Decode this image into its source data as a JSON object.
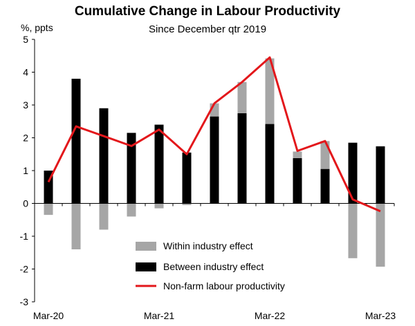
{
  "chart_data": {
    "type": "bar",
    "title": "Cumulative Change in Labour Productivity",
    "subtitle": "Since December qtr 2019",
    "ylabel": "%, ppts",
    "ylim": [
      -3,
      5
    ],
    "yticks": [
      "-3",
      "-2",
      "-1",
      "0",
      "1",
      "2",
      "3",
      "4",
      "5"
    ],
    "x_tick_labels": [
      "Mar-20",
      "Mar-21",
      "Mar-22",
      "Mar-23"
    ],
    "x_tick_positions": [
      0,
      4,
      8,
      12
    ],
    "categories": [
      "Mar-20",
      "Jun-20",
      "Sep-20",
      "Dec-20",
      "Mar-21",
      "Jun-21",
      "Sep-21",
      "Dec-21",
      "Mar-22",
      "Jun-22",
      "Sep-22",
      "Dec-22",
      "Mar-23"
    ],
    "series": [
      {
        "name": "Within industry effect",
        "kind": "stacked-bar",
        "color": "#a6a6a6",
        "values": [
          -0.35,
          -1.4,
          -0.8,
          -0.4,
          -0.15,
          -0.05,
          0.4,
          0.95,
          2.0,
          0.2,
          0.85,
          -1.67,
          -1.93
        ]
      },
      {
        "name": "Between industry effect",
        "kind": "stacked-bar",
        "color": "#000000",
        "values": [
          1.0,
          3.8,
          2.9,
          2.15,
          2.4,
          1.55,
          2.65,
          2.75,
          2.42,
          1.38,
          1.05,
          1.85,
          1.74
        ]
      },
      {
        "name": "Non-farm labour productivity",
        "kind": "line",
        "color": "#e3171b",
        "values": [
          0.65,
          2.35,
          2.05,
          1.75,
          2.25,
          1.5,
          3.05,
          3.7,
          4.45,
          1.6,
          1.9,
          0.12,
          -0.24
        ]
      }
    ],
    "legend_position": "bottom-center",
    "grid": false
  }
}
